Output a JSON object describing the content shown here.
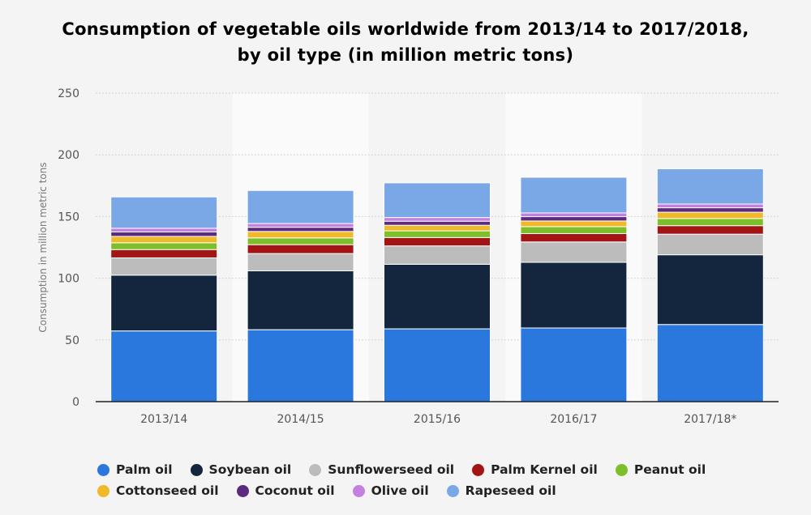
{
  "chart_data": {
    "type": "bar",
    "stacked": true,
    "title": "Consumption of vegetable oils worldwide from 2013/14 to 2017/2018,",
    "subtitle": "by oil type (in million metric tons)",
    "xlabel": "",
    "ylabel": "Consumption in million metric tons",
    "ylim": [
      0,
      250
    ],
    "yticks": [
      0,
      50,
      100,
      150,
      200,
      250
    ],
    "grid": true,
    "legend_position": "bottom",
    "categories": [
      "2013/14",
      "2014/15",
      "2015/16",
      "2016/17",
      "2017/18*"
    ],
    "series": [
      {
        "name": "Palm oil",
        "color": "#2a77dd",
        "values": [
          57.3,
          58.3,
          59.0,
          59.7,
          62.5
        ]
      },
      {
        "name": "Soybean oil",
        "color": "#13263e",
        "values": [
          45.2,
          47.7,
          52.3,
          53.2,
          56.5
        ]
      },
      {
        "name": "Sunflowerseed oil",
        "color": "#bcbcbc",
        "values": [
          14.0,
          14.0,
          14.9,
          16.5,
          16.7
        ]
      },
      {
        "name": "Palm Kernel oil",
        "color": "#a31515",
        "values": [
          6.7,
          7.2,
          6.8,
          6.8,
          6.9
        ]
      },
      {
        "name": "Peanut oil",
        "color": "#7cbf2a",
        "values": [
          5.5,
          5.5,
          5.4,
          5.6,
          5.8
        ]
      },
      {
        "name": "Cottonseed oil",
        "color": "#efb928",
        "values": [
          5.2,
          5.2,
          4.5,
          4.6,
          5.1
        ]
      },
      {
        "name": "Coconut oil",
        "color": "#5c2a7e",
        "values": [
          3.6,
          3.4,
          3.3,
          3.5,
          3.6
        ]
      },
      {
        "name": "Olive oil",
        "color": "#c47fe0",
        "values": [
          3.0,
          3.0,
          3.0,
          3.0,
          3.0
        ]
      },
      {
        "name": "Rapeseed oil",
        "color": "#7aa8e6",
        "values": [
          25.4,
          26.8,
          28.1,
          28.9,
          28.6
        ]
      }
    ]
  }
}
